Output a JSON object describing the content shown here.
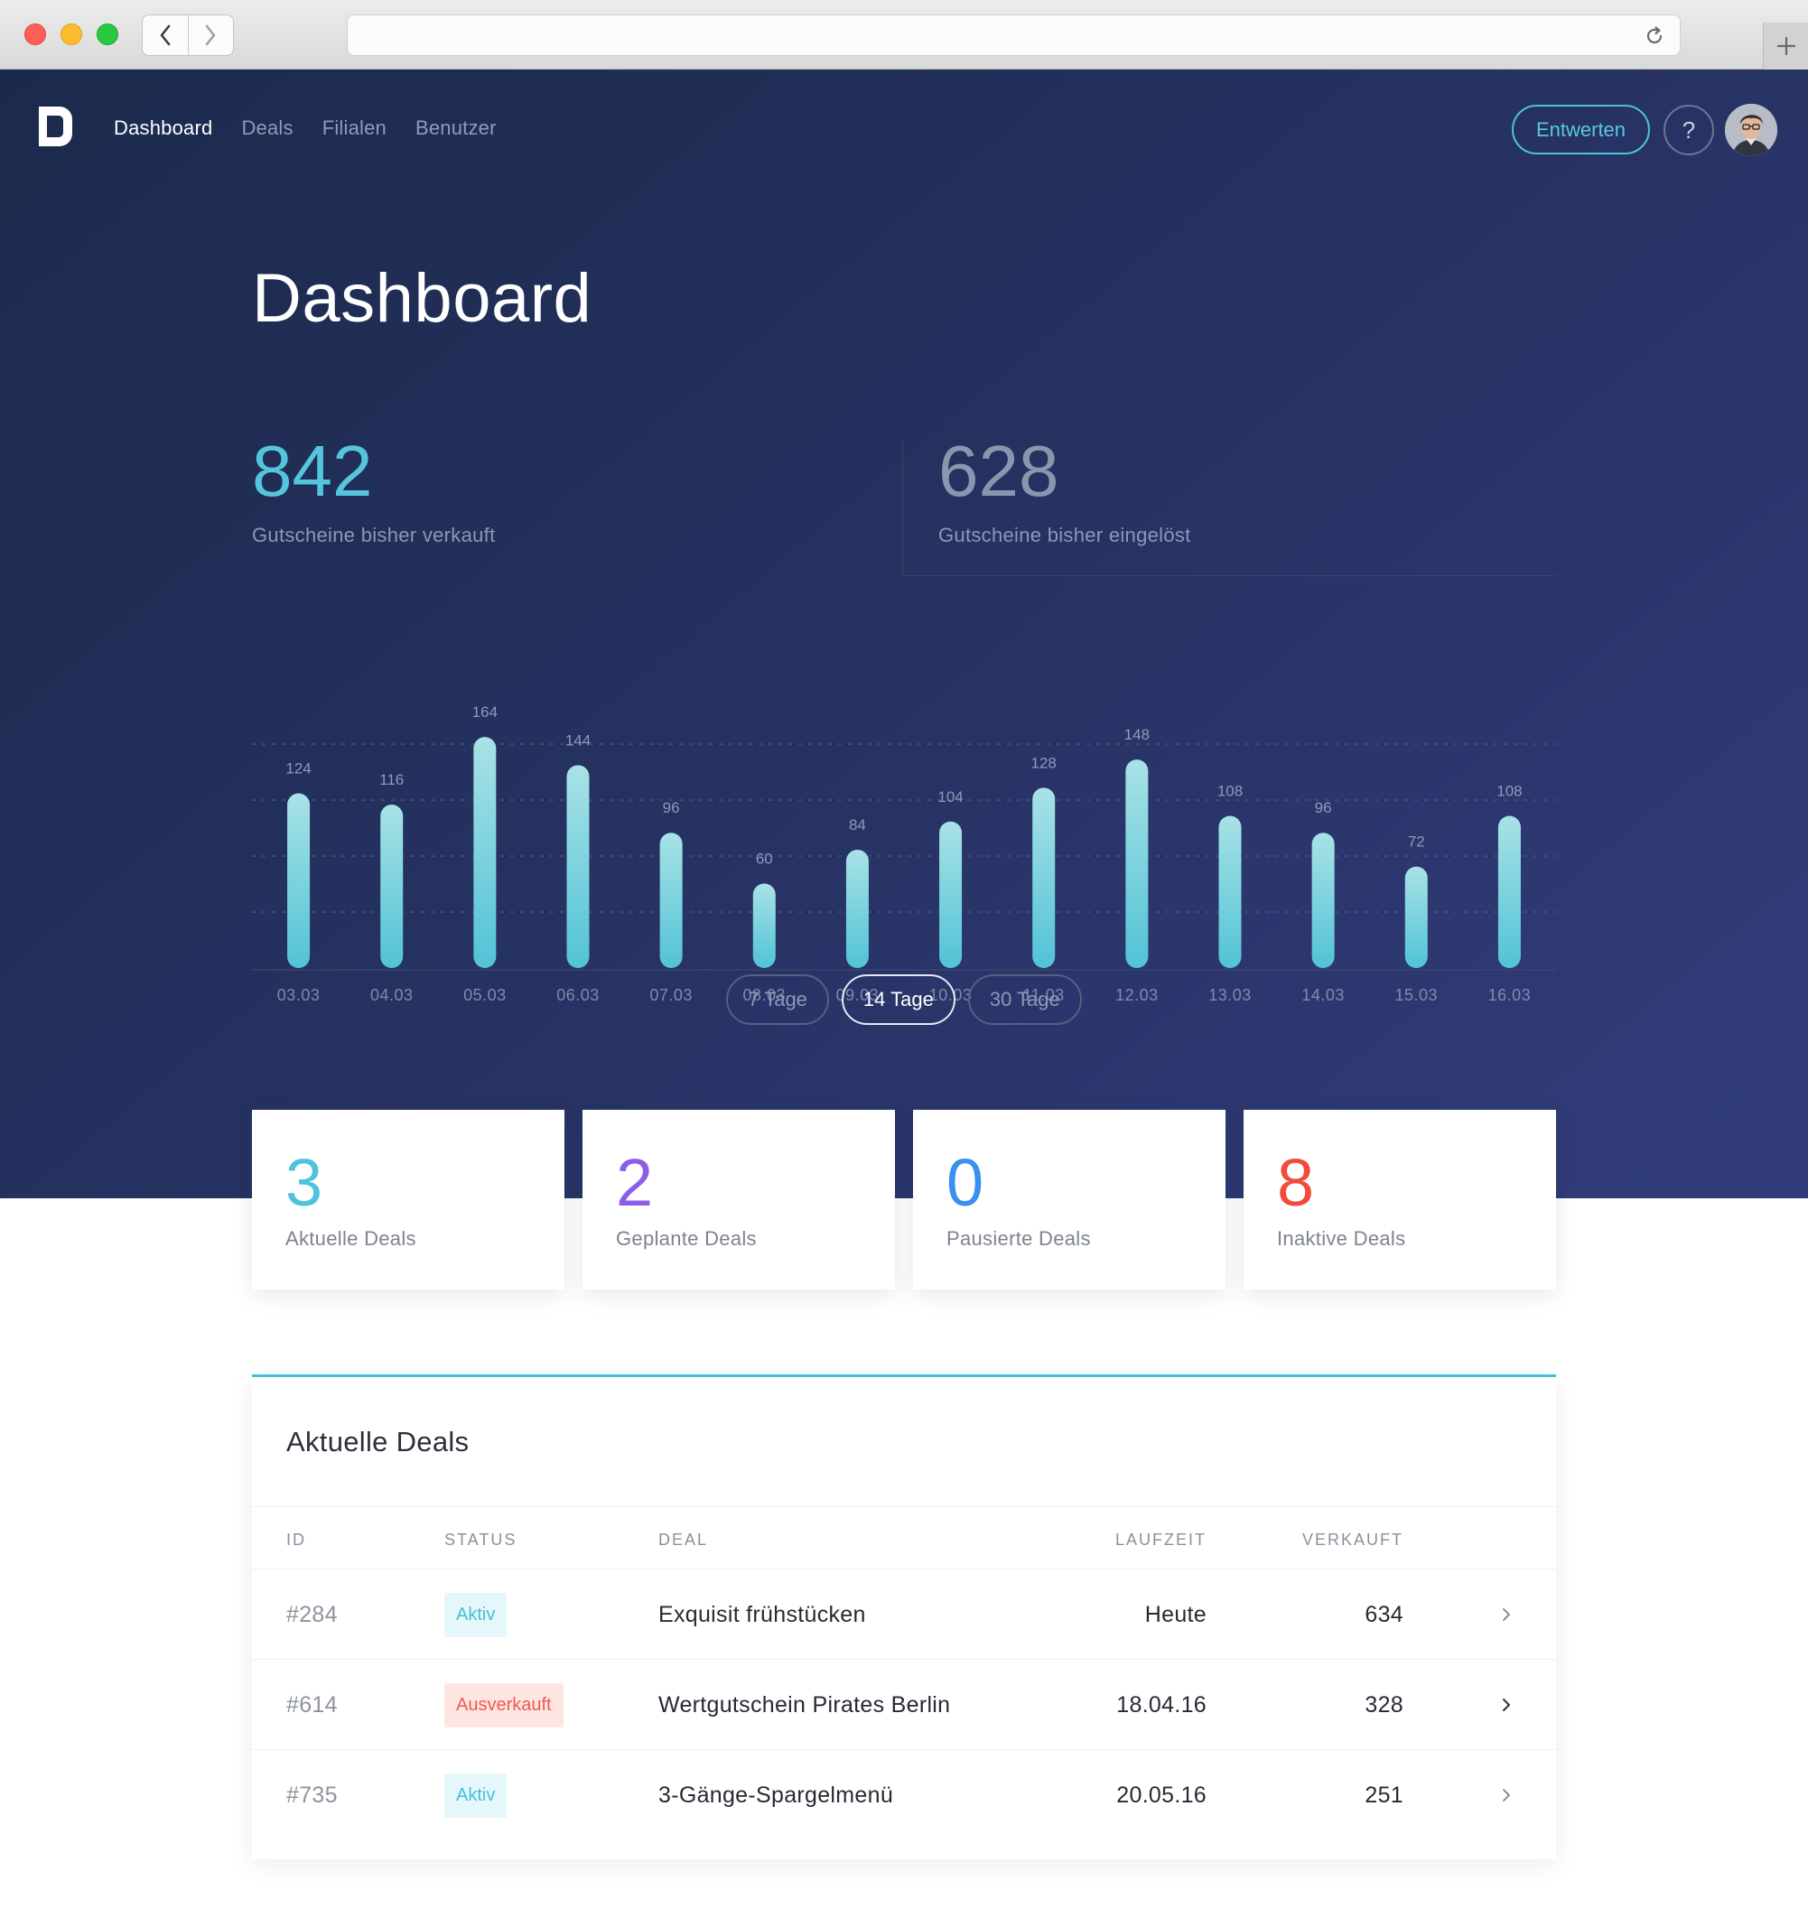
{
  "nav": {
    "brand_icon": "deal-logo-icon",
    "links": [
      {
        "label": "Dashboard",
        "active": true
      },
      {
        "label": "Deals",
        "active": false
      },
      {
        "label": "Filialen",
        "active": false
      },
      {
        "label": "Benutzer",
        "active": false
      }
    ],
    "redeem_label": "Entwerten",
    "help_label": "?"
  },
  "page": {
    "title": "Dashboard"
  },
  "stats": {
    "sold": {
      "value": "842",
      "label": "Gutscheine bisher verkauft"
    },
    "redeemed": {
      "value": "628",
      "label": "Gutscheine bisher eingelöst"
    }
  },
  "chart_data": {
    "type": "bar",
    "categories": [
      "03.03",
      "04.03",
      "05.03",
      "06.03",
      "07.03",
      "08.03",
      "09.03",
      "10.03",
      "11.03",
      "12.03",
      "13.03",
      "14.03",
      "15.03",
      "16.03"
    ],
    "values": [
      124,
      116,
      164,
      144,
      96,
      60,
      84,
      104,
      128,
      148,
      108,
      96,
      72,
      108
    ],
    "title": "",
    "xlabel": "",
    "ylabel": "",
    "ylim": [
      0,
      200
    ],
    "grid": true,
    "bar_color": "#5cc8d8"
  },
  "range": {
    "options": [
      "7 Tage",
      "14 Tage",
      "30 Tage"
    ],
    "selected": "14 Tage"
  },
  "cards": [
    {
      "value": "3",
      "label": "Aktuelle Deals",
      "color": "#4ec3dc"
    },
    {
      "value": "2",
      "label": "Geplante Deals",
      "color": "#8b5ee8"
    },
    {
      "value": "0",
      "label": "Pausierte Deals",
      "color": "#3a8ff0"
    },
    {
      "value": "8",
      "label": "Inaktive Deals",
      "color": "#f24b3b"
    }
  ],
  "deals": {
    "title": "Aktuelle Deals",
    "columns": {
      "id": "ID",
      "status": "STATUS",
      "deal": "DEAL",
      "runtime": "LAUFZEIT",
      "sold": "VERKAUFT"
    },
    "rows": [
      {
        "id": "#284",
        "status": "Aktiv",
        "status_type": "active",
        "deal": "Exquisit frühstücken",
        "runtime": "Heute",
        "sold": "634"
      },
      {
        "id": "#614",
        "status": "Ausverkauft",
        "status_type": "sold",
        "deal": "Wertgutschein Pirates Berlin",
        "runtime": "18.04.16",
        "sold": "328"
      },
      {
        "id": "#735",
        "status": "Aktiv",
        "status_type": "active",
        "deal": "3-Gänge-Spargelmenü",
        "runtime": "20.05.16",
        "sold": "251"
      }
    ]
  }
}
